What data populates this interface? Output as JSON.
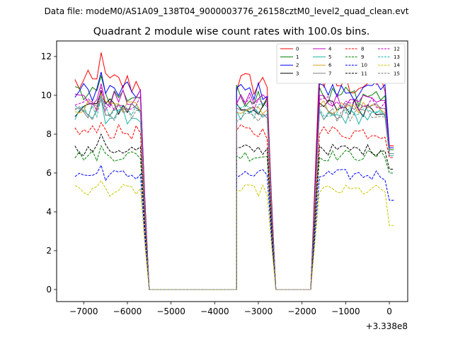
{
  "chart_data": {
    "type": "line",
    "suptitle": "Data file: modeM0/AS1A09_138T04_9000003776_26158cztM0_level2_quad_clean.evt",
    "title": "Quadrant 2 module wise count rates with 100.0s bins.",
    "xlabel": "",
    "ylabel": "",
    "offset_text": "+3.338e8",
    "xlim": [
      -7620,
      420
    ],
    "ylim": [
      -0.62,
      12.8
    ],
    "x_ticks": [
      -7000,
      -6000,
      -5000,
      -4000,
      -3000,
      -2000,
      -1000,
      0
    ],
    "x_tick_labels": [
      "−7000",
      "−6000",
      "−5000",
      "−4000",
      "−3000",
      "−2000",
      "−1000",
      "0"
    ],
    "y_ticks": [
      0,
      2,
      4,
      6,
      8,
      10,
      12
    ],
    "y_tick_labels": [
      "0",
      "2",
      "4",
      "6",
      "8",
      "10",
      "12"
    ],
    "segments": [
      {
        "start": -7200,
        "plateau_end": -5700,
        "points": 16
      },
      {
        "start": -3500,
        "plateau_end": -2800,
        "points": 8
      },
      {
        "start": -1600,
        "plateau_end": 0,
        "points": 17
      }
    ],
    "zero_segments": [
      [
        -5500,
        -3500
      ],
      [
        -2600,
        -1800
      ]
    ],
    "series": [
      {
        "name": "0",
        "color": "#ff0000",
        "dash": "solid",
        "level": 10.6,
        "amp": 0.7,
        "spike": 12.2,
        "end": 7.4
      },
      {
        "name": "1",
        "color": "#008000",
        "dash": "solid",
        "level": 10.0,
        "amp": 0.6,
        "spike": 11.0,
        "end": 7.2
      },
      {
        "name": "2",
        "color": "#0000ff",
        "dash": "solid",
        "level": 10.2,
        "amp": 0.5,
        "spike": 11.2,
        "end": 7.3
      },
      {
        "name": "3",
        "color": "#000000",
        "dash": "solid",
        "level": 9.4,
        "amp": 0.5,
        "spike": 10.2,
        "end": 7.0
      },
      {
        "name": "4",
        "color": "#c000c0",
        "dash": "solid",
        "level": 9.8,
        "amp": 0.5,
        "spike": 10.6,
        "end": 7.0
      },
      {
        "name": "5",
        "color": "#20b2aa",
        "dash": "solid",
        "level": 8.9,
        "amp": 0.4,
        "spike": 9.8,
        "end": 6.9
      },
      {
        "name": "6",
        "color": "#daa520",
        "dash": "solid",
        "level": 9.4,
        "amp": 0.4,
        "spike": 10.1,
        "end": 7.0
      },
      {
        "name": "7",
        "color": "#808080",
        "dash": "solid",
        "level": 9.2,
        "amp": 0.4,
        "spike": 10.0,
        "end": 7.0
      },
      {
        "name": "8",
        "color": "#ff0000",
        "dash": "dashed",
        "level": 8.1,
        "amp": 0.4,
        "spike": 8.6,
        "end": 6.8
      },
      {
        "name": "9",
        "color": "#008000",
        "dash": "dashed",
        "level": 6.9,
        "amp": 0.3,
        "spike": 7.4,
        "end": 6.0
      },
      {
        "name": "10",
        "color": "#0000ff",
        "dash": "dashed",
        "level": 5.9,
        "amp": 0.3,
        "spike": 6.4,
        "end": 4.6
      },
      {
        "name": "11",
        "color": "#000000",
        "dash": "dashed",
        "level": 7.2,
        "amp": 0.3,
        "spike": 8.0,
        "end": 6.2
      },
      {
        "name": "12",
        "color": "#c000c0",
        "dash": "dashed",
        "level": 9.6,
        "amp": 0.4,
        "spike": 10.4,
        "end": 7.0
      },
      {
        "name": "13",
        "color": "#20b2aa",
        "dash": "dashed",
        "level": 9.2,
        "amp": 0.4,
        "spike": 9.9,
        "end": 7.0
      },
      {
        "name": "14",
        "color": "#c8c800",
        "dash": "dashed",
        "level": 5.1,
        "amp": 0.3,
        "spike": 5.6,
        "end": 3.3
      },
      {
        "name": "15",
        "color": "#808080",
        "dash": "dashed",
        "level": 9.0,
        "amp": 0.4,
        "spike": 9.8,
        "end": 7.0
      }
    ]
  }
}
